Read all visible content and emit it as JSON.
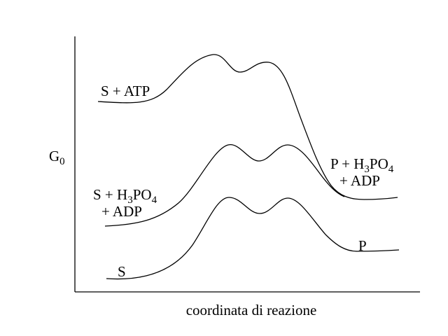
{
  "axes": {
    "y_label": {
      "main": "G",
      "sub": "0"
    },
    "x_label": "coordinata  di  reazione"
  },
  "curves": {
    "atp": {
      "start_label": "S + ATP",
      "end_label_line1": {
        "pre": "P + H",
        "sub1": "3",
        "mid": "PO",
        "sub2": "4"
      },
      "end_label_line2": "+ ADP"
    },
    "phosphate": {
      "start_label_line1": {
        "pre": "S + H",
        "sub1": "3",
        "mid": "PO",
        "sub2": "4"
      },
      "start_label_line2": "+ ADP"
    },
    "plain": {
      "start_label": "S",
      "end_label": "P"
    }
  },
  "colors": {
    "ink": "#000000",
    "background": "#ffffff"
  }
}
